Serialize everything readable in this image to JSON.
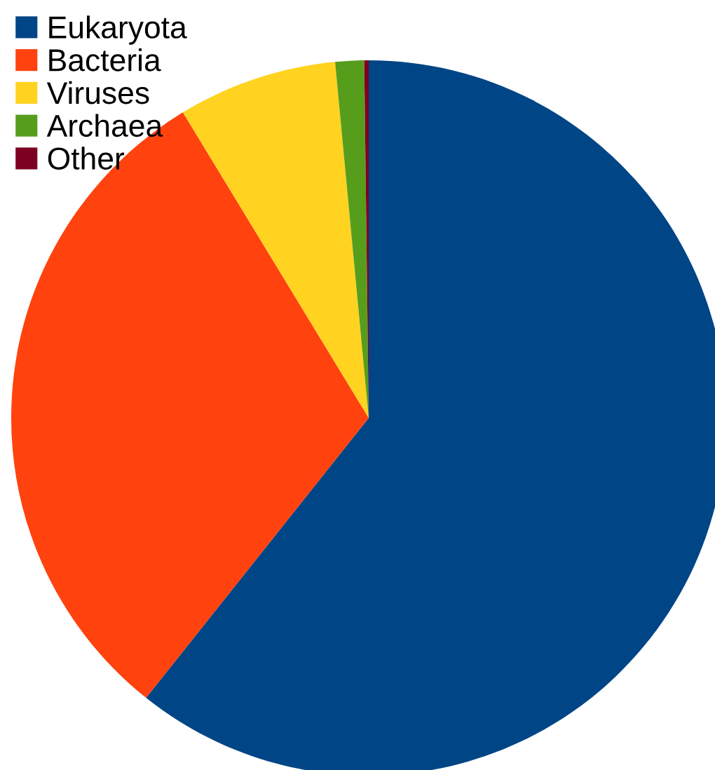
{
  "chart_data": {
    "type": "pie",
    "categories": [
      "Eukaryota",
      "Bacteria",
      "Viruses",
      "Archaea",
      "Other"
    ],
    "values": [
      60.7,
      30.6,
      7.2,
      1.3,
      0.2
    ],
    "colors": [
      "#004586",
      "#ff420e",
      "#ffd320",
      "#579d1c",
      "#7e0021"
    ],
    "legend": "top left"
  }
}
